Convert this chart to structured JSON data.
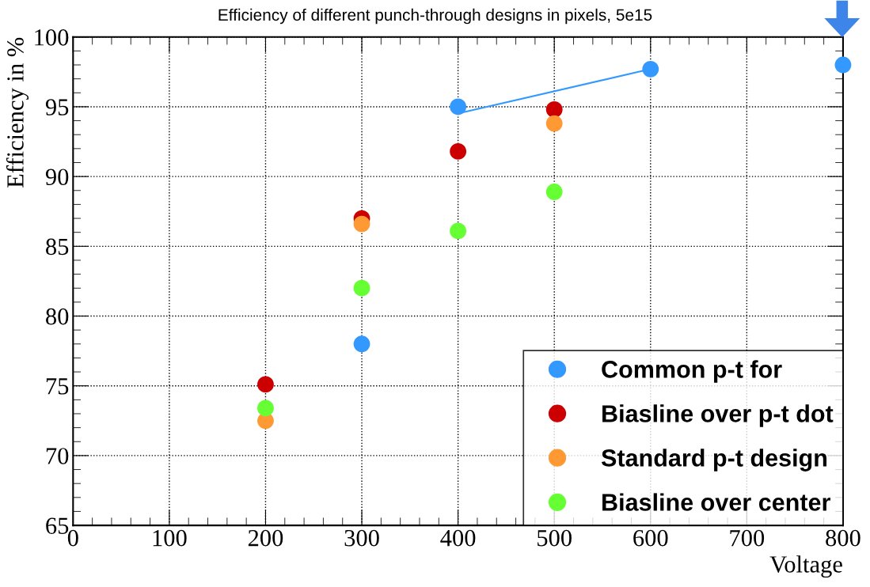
{
  "chart_data": {
    "type": "scatter",
    "title": "Efficiency of different punch-through designs in pixels, 5e15",
    "xlabel": "Voltage",
    "ylabel": "Efficiency in %",
    "xlim": [
      0,
      800
    ],
    "xticks": [
      0,
      100,
      200,
      300,
      400,
      500,
      600,
      700,
      800
    ],
    "ylim": [
      65,
      100
    ],
    "yticks": [
      65,
      70,
      75,
      80,
      85,
      90,
      95,
      100
    ],
    "grid": true,
    "legend": "bottom right",
    "marker": "circle",
    "series": [
      {
        "name": "Common p-t for",
        "color": "#3399ff",
        "x": [
          300,
          400,
          600,
          800
        ],
        "values": [
          78.0,
          95.0,
          97.7,
          98.0
        ]
      },
      {
        "name": "Biasline over p-t dot",
        "color": "#cc0000",
        "x": [
          200,
          300,
          400,
          500
        ],
        "values": [
          75.1,
          87.0,
          91.8,
          94.8
        ]
      },
      {
        "name": "Standard p-t design",
        "color": "#ff9933",
        "x": [
          200,
          300,
          500
        ],
        "values": [
          72.5,
          86.6,
          93.8
        ]
      },
      {
        "name": "Biasline over center",
        "color": "#66ff33",
        "x": [
          200,
          300,
          400,
          500
        ],
        "values": [
          73.4,
          82.0,
          86.1,
          88.9
        ]
      },
      {
        "type": "line",
        "marker": "none",
        "color": "#3399ff",
        "x": [
          405,
          600
        ],
        "values": [
          94.6,
          97.7
        ]
      }
    ]
  }
}
